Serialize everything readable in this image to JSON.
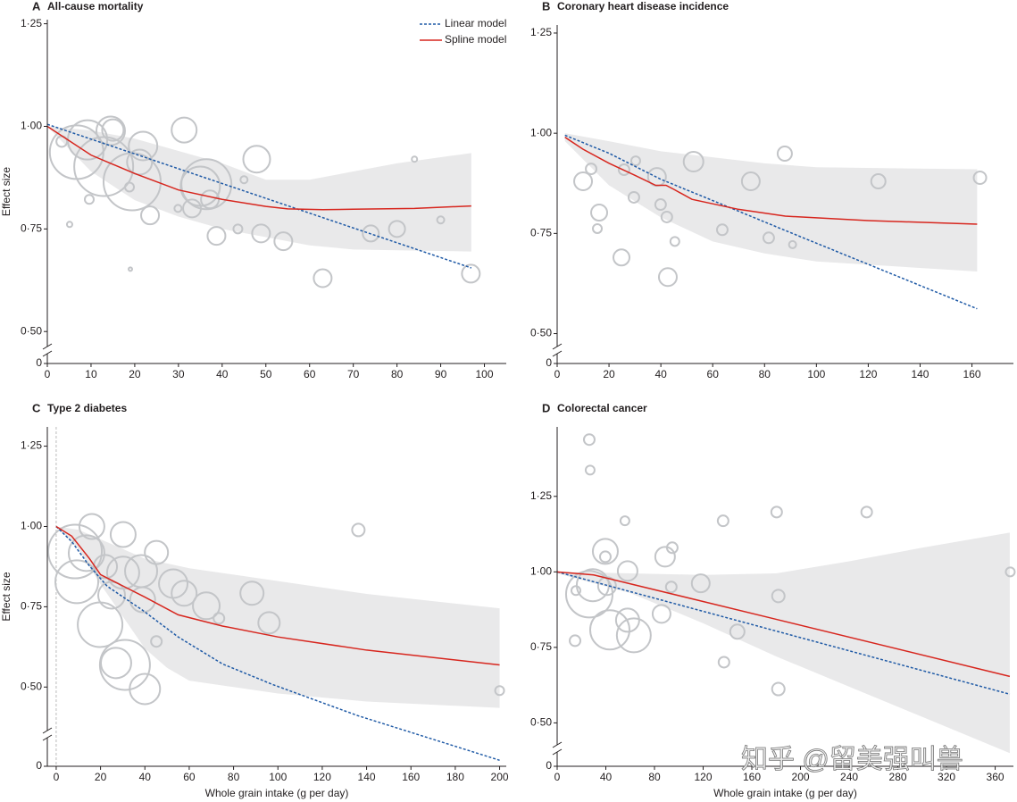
{
  "chart_data": [
    {
      "type": "bubble_line",
      "label": "A",
      "title": "All-cause mortality",
      "ylabel": "Effect size",
      "xlim": [
        0,
        105
      ],
      "ylim": [
        0.47,
        1.26
      ],
      "axis_break": true,
      "legend": "top-right",
      "xticks": [
        0,
        10,
        20,
        30,
        40,
        50,
        60,
        70,
        80,
        90,
        100
      ],
      "yticks": [
        0,
        {
          "value": 0.5,
          "label": "0·50"
        },
        {
          "value": 0.75,
          "label": "0·75"
        },
        {
          "value": 1,
          "label": "1·00"
        },
        {
          "value": 1.25,
          "label": "1·25"
        }
      ],
      "band": {
        "color": "#e9e9ea",
        "x": [
          0,
          10,
          20,
          30,
          40,
          50,
          60,
          70,
          80,
          97
        ],
        "upper": [
          1.0,
          0.99,
          0.97,
          0.94,
          0.91,
          0.87,
          0.87,
          0.89,
          0.91,
          0.935
        ],
        "lower": [
          1.0,
          0.89,
          0.82,
          0.78,
          0.75,
          0.73,
          0.71,
          0.7,
          0.698,
          0.695
        ]
      },
      "points": {
        "color": "#c3c5c8",
        "x": [
          3.3,
          9.2,
          6.7,
          12.9,
          19.4,
          14.5,
          15,
          21.9,
          21.1,
          31.3,
          23.5,
          36.4,
          35,
          33.1,
          37.2,
          47.9,
          38.7,
          43.6,
          45,
          48.9,
          54,
          63,
          74,
          80,
          84,
          90,
          96.9,
          9.6,
          18.8,
          5.1,
          19,
          29.9
        ],
        "values": [
          0.963,
          0.967,
          0.937,
          0.902,
          0.865,
          0.989,
          0.991,
          0.952,
          0.913,
          0.991,
          0.783,
          0.859,
          0.854,
          0.8,
          0.822,
          0.92,
          0.733,
          0.75,
          0.87,
          0.739,
          0.72,
          0.63,
          0.739,
          0.75,
          0.92,
          0.772,
          0.641,
          0.822,
          0.852,
          0.761,
          0.652,
          0.8
        ],
        "sizes": [
          6,
          22,
          30,
          33,
          32,
          16,
          12,
          16,
          14,
          14,
          10,
          28,
          22,
          10,
          10,
          15,
          10,
          5,
          4,
          10,
          10,
          10,
          9,
          9,
          3,
          4,
          10,
          5,
          5,
          3,
          2,
          4
        ]
      },
      "series": [
        {
          "name": "Linear model",
          "color": "#1f5aa6",
          "style": "dotted",
          "x": [
            0,
            97
          ],
          "values": [
            1.005,
            0.655
          ]
        },
        {
          "name": "Spline model",
          "color": "#d7261e",
          "style": "solid",
          "x": [
            0,
            10,
            20,
            30,
            40,
            50,
            55,
            63,
            70,
            84,
            97
          ],
          "values": [
            1.0,
            0.93,
            0.885,
            0.845,
            0.822,
            0.805,
            0.799,
            0.797,
            0.798,
            0.8,
            0.806
          ]
        }
      ]
    },
    {
      "type": "bubble_line",
      "label": "B",
      "title": "Coronary heart disease incidence",
      "xlim": [
        0,
        176
      ],
      "ylim": [
        0.47,
        1.27
      ],
      "axis_break": true,
      "xticks": [
        0,
        20,
        40,
        60,
        80,
        100,
        120,
        140,
        160
      ],
      "yticks": [
        0,
        {
          "value": 0.5,
          "label": "0·50"
        },
        {
          "value": 0.75,
          "label": "0·75"
        },
        {
          "value": 1,
          "label": "1·00"
        },
        {
          "value": 1.25,
          "label": "1·25"
        }
      ],
      "band": {
        "color": "#e9e9ea",
        "x": [
          3,
          20,
          40,
          60,
          80,
          100,
          162
        ],
        "upper": [
          1.0,
          0.98,
          0.955,
          0.94,
          0.925,
          0.915,
          0.91
        ],
        "lower": [
          0.98,
          0.87,
          0.79,
          0.73,
          0.7,
          0.68,
          0.655
        ]
      },
      "points": {
        "color": "#c3c5c8",
        "x": [
          10,
          13.1,
          16.2,
          15.5,
          24.8,
          25.8,
          30.3,
          29.6,
          38.5,
          39.9,
          42.3,
          42.7,
          45.4,
          52.6,
          63.7,
          74.7,
          81.6,
          87.8,
          90.8,
          123.9,
          163.1
        ],
        "values": [
          0.88,
          0.911,
          0.802,
          0.762,
          0.69,
          0.909,
          0.931,
          0.84,
          0.891,
          0.822,
          0.791,
          0.641,
          0.73,
          0.929,
          0.759,
          0.88,
          0.739,
          0.949,
          0.722,
          0.88,
          0.889
        ],
        "sizes": [
          10,
          6,
          9,
          5,
          9,
          6,
          5,
          6,
          10,
          6,
          6,
          10,
          5,
          11,
          6,
          10,
          6,
          8,
          4,
          8,
          7
        ]
      },
      "series": [
        {
          "color": "#1f5aa6",
          "style": "dotted",
          "x": [
            3,
            20,
            40,
            60,
            90,
            162
          ],
          "values": [
            0.995,
            0.95,
            0.885,
            0.832,
            0.752,
            0.562
          ]
        },
        {
          "color": "#d7261e",
          "style": "solid",
          "x": [
            3,
            10,
            20,
            30,
            38,
            42,
            45,
            52,
            70,
            88,
            120,
            162
          ],
          "values": [
            0.99,
            0.96,
            0.925,
            0.895,
            0.87,
            0.87,
            0.86,
            0.835,
            0.81,
            0.793,
            0.782,
            0.773
          ]
        }
      ]
    },
    {
      "type": "bubble_line",
      "label": "C",
      "title": "Type 2 diabetes",
      "ylabel": "Effect size",
      "xlabel": "Whole grain intake (g per day)",
      "xlim": [
        -4,
        203
      ],
      "ylim": [
        0.27,
        1.31
      ],
      "axis_break": true,
      "xticks": [
        0,
        20,
        40,
        60,
        80,
        100,
        120,
        140,
        160,
        180,
        200
      ],
      "yticks": [
        0,
        {
          "value": 0.5,
          "label": "0·50"
        },
        {
          "value": 0.75,
          "label": "0·75"
        },
        {
          "value": 1,
          "label": "1·00"
        },
        {
          "value": 1.25,
          "label": "1·25"
        }
      ],
      "band": {
        "color": "#e9e9ea",
        "x": [
          0,
          10,
          20,
          30,
          40,
          50,
          60,
          80,
          100,
          140,
          200
        ],
        "upper": [
          1.0,
          0.99,
          0.96,
          0.93,
          0.9,
          0.885,
          0.87,
          0.85,
          0.83,
          0.79,
          0.745
        ],
        "lower": [
          1.0,
          0.93,
          0.82,
          0.72,
          0.62,
          0.56,
          0.52,
          0.5,
          0.48,
          0.455,
          0.435
        ]
      },
      "points": {
        "color": "#c3c5c8",
        "x": [
          8.5,
          9.3,
          13.7,
          16.1,
          22.2,
          19.8,
          25,
          30.2,
          30.2,
          31,
          27,
          38.3,
          39,
          40,
          45.2,
          45.2,
          52.8,
          57.7,
          67.7,
          73.4,
          88.3,
          96,
          136.3,
          200
        ],
        "values": [
          0.922,
          0.828,
          0.917,
          1.0,
          0.875,
          0.694,
          0.786,
          0.975,
          0.856,
          0.569,
          0.575,
          0.861,
          0.772,
          0.494,
          0.919,
          0.642,
          0.822,
          0.792,
          0.753,
          0.714,
          0.792,
          0.7,
          0.989,
          0.489
        ],
        "sizes": [
          30,
          24,
          20,
          14,
          13,
          25,
          15,
          14,
          18,
          28,
          17,
          18,
          14,
          17,
          13,
          6,
          16,
          14,
          15,
          6,
          13,
          12,
          7,
          5
        ]
      },
      "series": [
        {
          "color": "#1f5aa6",
          "style": "dotted",
          "x": [
            0,
            7,
            14.9,
            23,
            39,
            55,
            75,
            97.6,
            136,
            200
          ],
          "values": [
            1.0,
            0.953,
            0.878,
            0.814,
            0.739,
            0.656,
            0.572,
            0.508,
            0.411,
            0.272
          ]
        },
        {
          "color": "#d7261e",
          "style": "solid",
          "x": [
            0,
            7,
            15,
            20,
            30,
            40,
            55,
            75,
            100,
            140,
            200
          ],
          "values": [
            1.0,
            0.97,
            0.9,
            0.85,
            0.815,
            0.78,
            0.725,
            0.69,
            0.656,
            0.615,
            0.569
          ]
        }
      ]
    },
    {
      "type": "bubble_line",
      "label": "D",
      "title": "Colorectal cancer",
      "xlabel": "Whole grain intake (g per day)",
      "xlim": [
        0,
        375
      ],
      "ylim": [
        0.38,
        1.48
      ],
      "axis_break": true,
      "xticks": [
        0,
        40,
        80,
        120,
        160,
        200,
        240,
        280,
        320,
        360
      ],
      "yticks": [
        0,
        {
          "value": 0.5,
          "label": "0·50"
        },
        {
          "value": 0.75,
          "label": "0·75"
        },
        {
          "value": 1,
          "label": "1·00"
        },
        {
          "value": 1.25,
          "label": "1·25"
        }
      ],
      "band": {
        "color": "#e9e9ea",
        "x": [
          0,
          60,
          120,
          180,
          240,
          300,
          372
        ],
        "upper": [
          1.0,
          0.995,
          0.99,
          0.995,
          1.035,
          1.08,
          1.13
        ],
        "lower": [
          0.995,
          0.93,
          0.83,
          0.72,
          0.62,
          0.52,
          0.4
        ]
      },
      "points": {
        "color": "#c3c5c8",
        "x": [
          26.4,
          27.1,
          15.4,
          14.7,
          26.4,
          29.3,
          39.6,
          39.6,
          41,
          43.3,
          57.9,
          57.9,
          63,
          55.7,
          85.8,
          88.7,
          94.6,
          93.8,
          118,
          136.4,
          137.1,
          148.1,
          180.4,
          181.8,
          181.8,
          254.4,
          372.4
        ],
        "values": [
          1.438,
          1.337,
          0.938,
          0.772,
          0.926,
          0.956,
          1.068,
          1.05,
          0.953,
          0.808,
          1.003,
          0.84,
          0.79,
          1.169,
          0.861,
          1.05,
          1.08,
          0.95,
          0.962,
          1.169,
          0.701,
          0.802,
          1.198,
          0.92,
          0.612,
          1.198,
          1.0
        ],
        "sizes": [
          6,
          5,
          5,
          6,
          26,
          18,
          14,
          6,
          10,
          22,
          11,
          13,
          19,
          5,
          10,
          11,
          6,
          6,
          10,
          6,
          6,
          8,
          6,
          7,
          7,
          6,
          5
        ]
      },
      "series": [
        {
          "color": "#1f5aa6",
          "style": "dotted",
          "x": [
            0,
            372
          ],
          "values": [
            1.0,
            0.595
          ]
        },
        {
          "color": "#d7261e",
          "style": "solid",
          "x": [
            0,
            30,
            180,
            372
          ],
          "values": [
            1.0,
            0.99,
            0.843,
            0.654
          ]
        }
      ]
    }
  ],
  "watermark": "知乎 @留美强叫兽"
}
